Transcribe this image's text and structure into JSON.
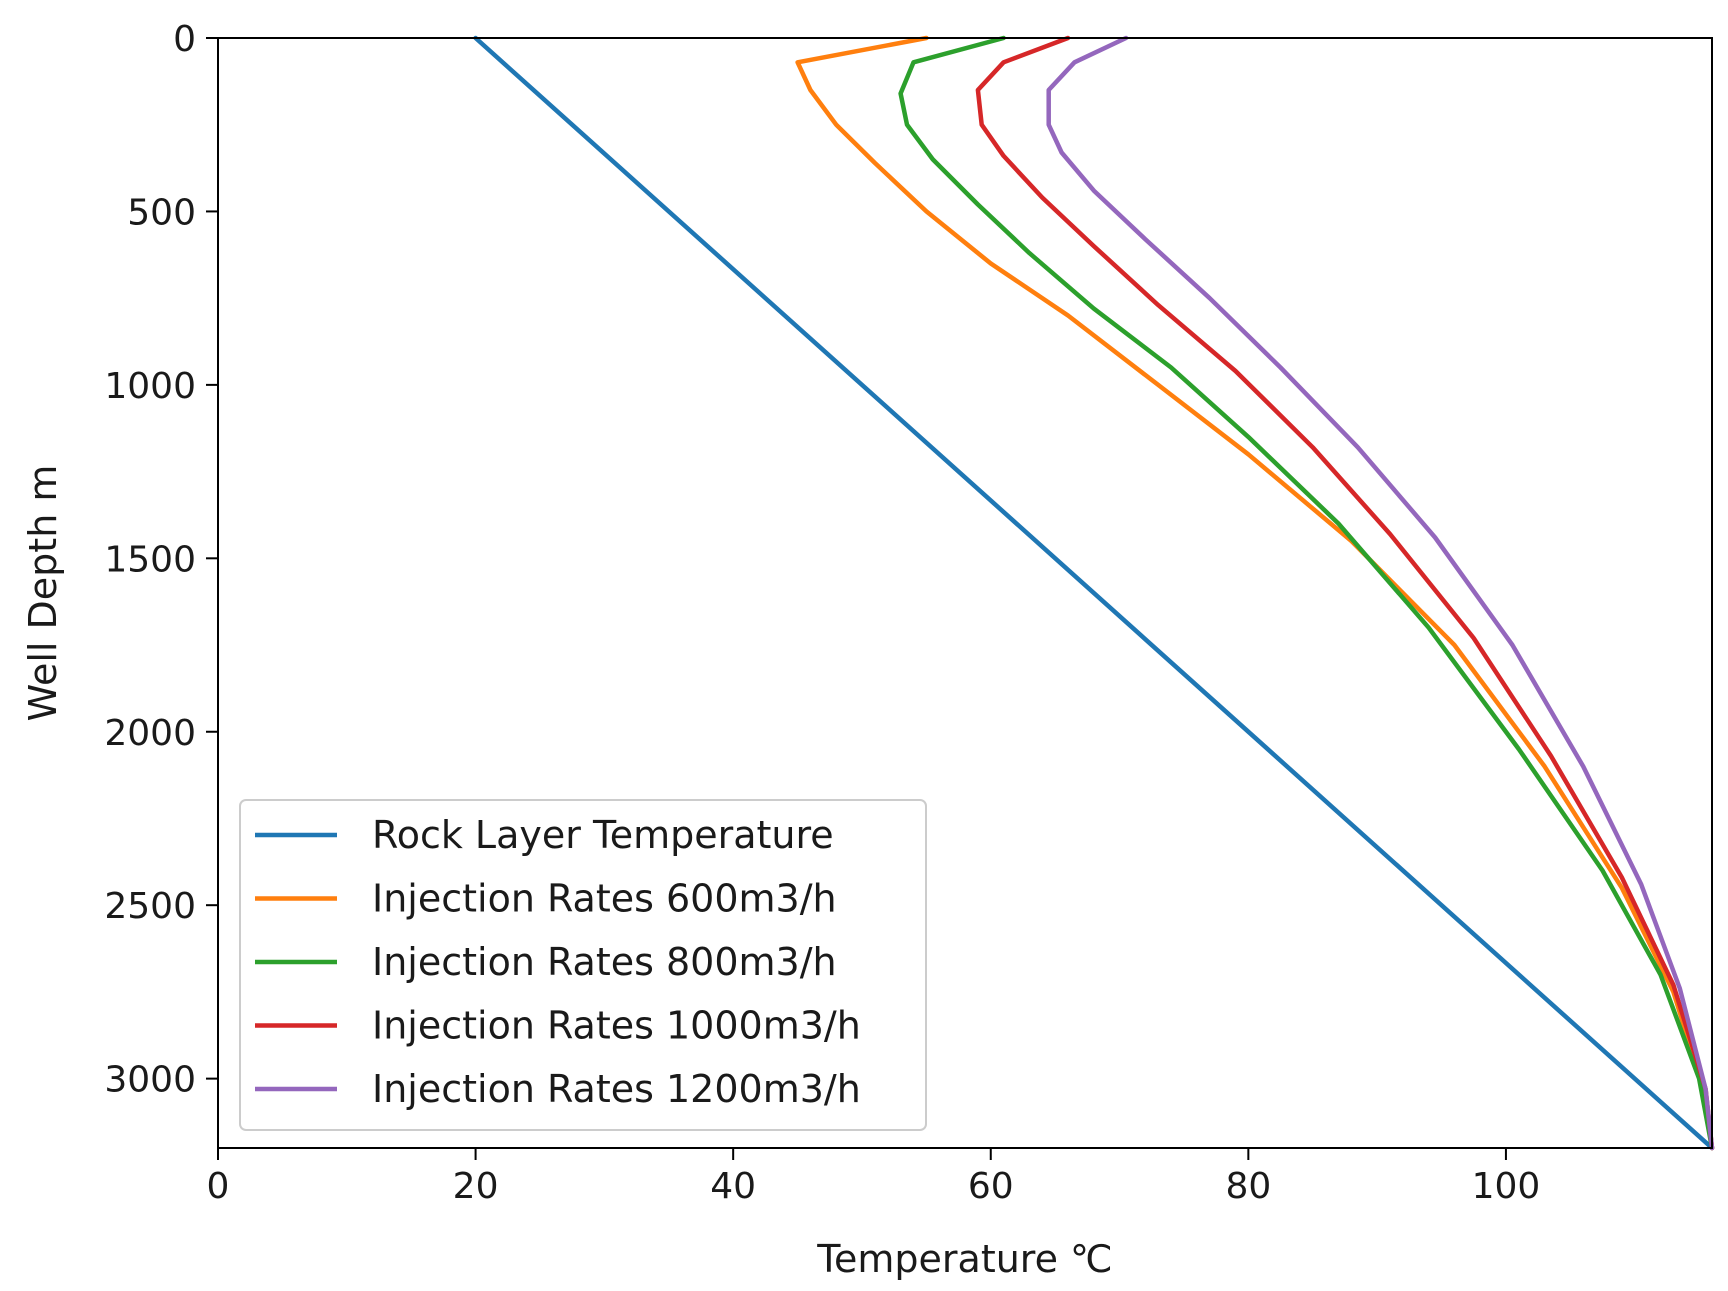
{
  "chart_data": {
    "type": "line",
    "title": "",
    "xlabel": "Temperature ℃",
    "ylabel": "Well Depth m",
    "xlim": [
      0,
      116
    ],
    "ylim": [
      3200,
      0
    ],
    "xticks": [
      0,
      20,
      40,
      60,
      80,
      100
    ],
    "yticks": [
      0,
      500,
      1000,
      1500,
      2000,
      2500,
      3000
    ],
    "grid": false,
    "legend_position": "lower-left",
    "series": [
      {
        "name": "Rock Layer Temperature",
        "color": "#1f77b4",
        "points": [
          [
            20,
            0
          ],
          [
            116,
            3200
          ]
        ]
      },
      {
        "name": "Injection Rates 600m3/h",
        "color": "#ff7f0e",
        "points": [
          [
            55,
            0
          ],
          [
            45,
            70
          ],
          [
            46,
            150
          ],
          [
            48,
            250
          ],
          [
            51,
            360
          ],
          [
            55,
            500
          ],
          [
            60,
            650
          ],
          [
            66,
            800
          ],
          [
            73,
            1000
          ],
          [
            80,
            1200
          ],
          [
            88,
            1450
          ],
          [
            96,
            1750
          ],
          [
            103,
            2100
          ],
          [
            109,
            2450
          ],
          [
            113,
            2750
          ],
          [
            115.5,
            3050
          ],
          [
            116,
            3200
          ]
        ]
      },
      {
        "name": "Injection Rates 800m3/h",
        "color": "#2ca02c",
        "points": [
          [
            61,
            0
          ],
          [
            54,
            70
          ],
          [
            53,
            160
          ],
          [
            53.5,
            250
          ],
          [
            55.5,
            350
          ],
          [
            59,
            480
          ],
          [
            63,
            620
          ],
          [
            68,
            780
          ],
          [
            74,
            950
          ],
          [
            80,
            1150
          ],
          [
            87,
            1400
          ],
          [
            94,
            1700
          ],
          [
            101,
            2050
          ],
          [
            107.5,
            2400
          ],
          [
            112,
            2700
          ],
          [
            115,
            3000
          ],
          [
            116,
            3200
          ]
        ]
      },
      {
        "name": "Injection Rates 1000m3/h",
        "color": "#d62728",
        "points": [
          [
            66,
            0
          ],
          [
            61,
            70
          ],
          [
            59,
            150
          ],
          [
            59.3,
            250
          ],
          [
            61,
            340
          ],
          [
            64,
            460
          ],
          [
            68,
            600
          ],
          [
            73,
            770
          ],
          [
            79,
            960
          ],
          [
            85,
            1180
          ],
          [
            91,
            1430
          ],
          [
            97.5,
            1730
          ],
          [
            103.5,
            2070
          ],
          [
            109,
            2420
          ],
          [
            113,
            2730
          ],
          [
            115.5,
            3030
          ],
          [
            116,
            3200
          ]
        ]
      },
      {
        "name": "Injection Rates 1200m3/h",
        "color": "#9467bd",
        "points": [
          [
            70.5,
            0
          ],
          [
            66.5,
            70
          ],
          [
            64.5,
            150
          ],
          [
            64.5,
            250
          ],
          [
            65.5,
            330
          ],
          [
            68,
            440
          ],
          [
            72,
            580
          ],
          [
            77,
            750
          ],
          [
            82.5,
            950
          ],
          [
            88.5,
            1180
          ],
          [
            94.5,
            1440
          ],
          [
            100.5,
            1750
          ],
          [
            106,
            2100
          ],
          [
            110.5,
            2440
          ],
          [
            113.5,
            2740
          ],
          [
            115.5,
            3030
          ],
          [
            116,
            3200
          ]
        ]
      }
    ]
  }
}
